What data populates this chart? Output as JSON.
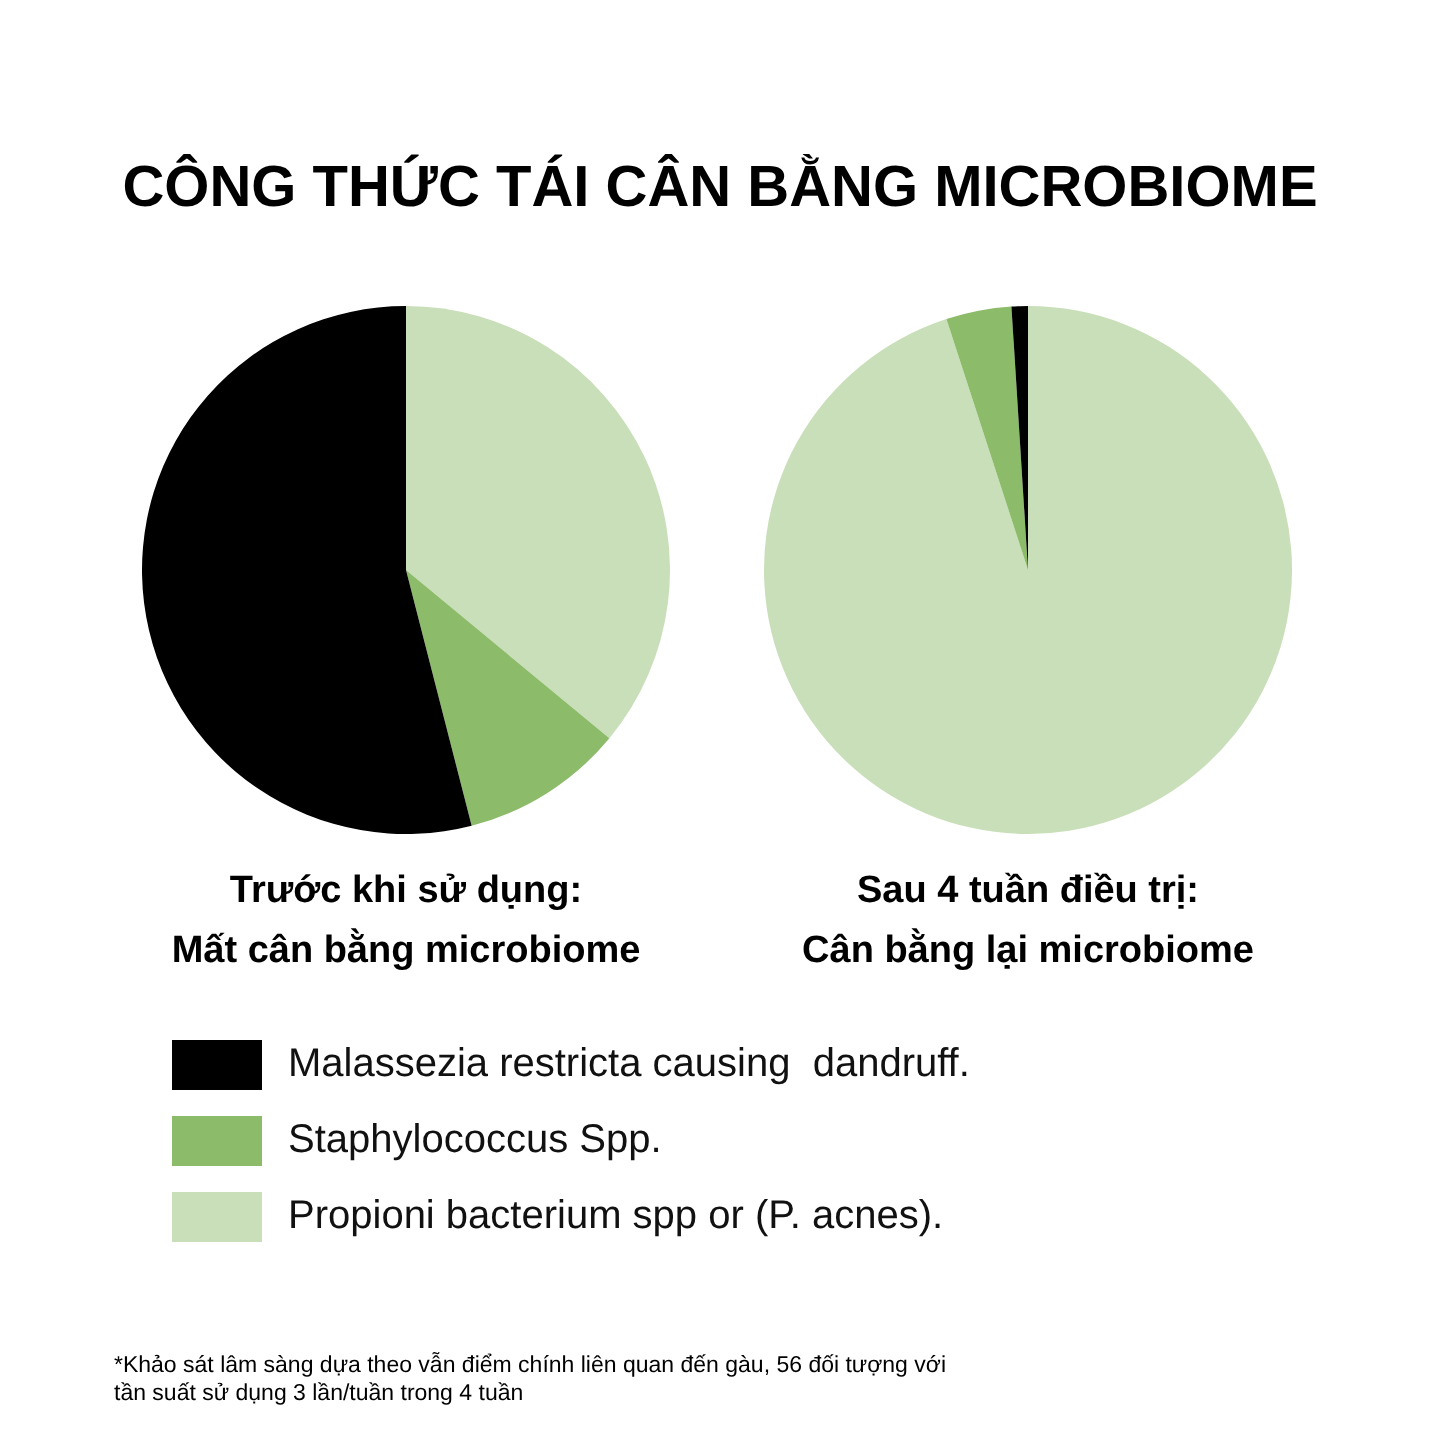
{
  "chart_data": {
    "type": "pie",
    "title": "CÔNG THỨC TÁI CÂN BẰNG MICROBIOME",
    "categories": [
      "Malassezia restricta causing  dandruff.",
      "Staphylococcus Spp.",
      "Propioni bacterium spp or (P. acnes)."
    ],
    "colors": [
      "#000000",
      "#8cbb69",
      "#c9dfb9"
    ],
    "series": [
      {
        "name": "Trước khi sử dụng:\nMất cân bằng microbiome",
        "values": [
          54,
          10,
          36
        ]
      },
      {
        "name": "Sau 4 tuần điều trị:\nCân bằng lại microbiome",
        "values": [
          1,
          4,
          95
        ]
      }
    ],
    "legend": "bottom",
    "annotations": [
      "*Khảo sát lâm sàng dựa theo vẫn điểm chính liên quan đến gàu, 56 đối tượng với tần suất sử dụng 3 lần/tuần trong 4 tuần"
    ]
  }
}
